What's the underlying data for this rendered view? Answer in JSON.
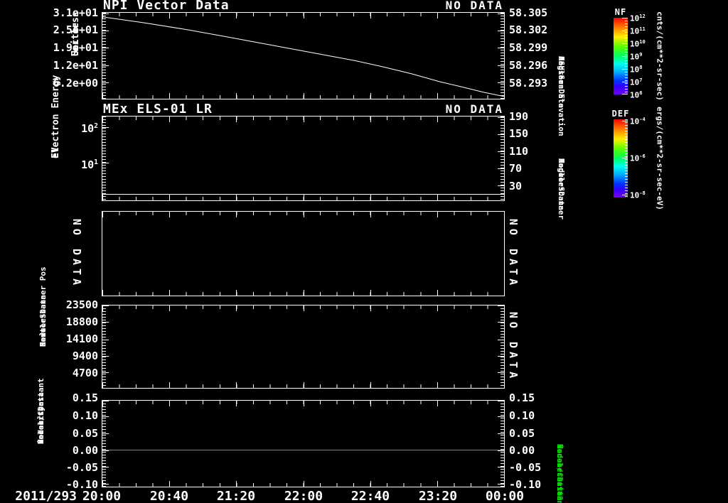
{
  "colors": {
    "background": "#000000",
    "foreground": "#ffffff",
    "green": "#00dd00"
  },
  "x_axis": {
    "date": "2011/293",
    "tick_labels": [
      "20:00",
      "20:40",
      "21:20",
      "22:00",
      "22:40",
      "23:20",
      "00:00"
    ]
  },
  "panels": [
    {
      "id": "p1",
      "title": "NPI Vector Data",
      "status": "NO DATA",
      "left_label_lines": [
        "Sector",
        "Unitless"
      ],
      "left_tick_labels": [
        "3.1e+01",
        "2.5e+01",
        "1.9e+01",
        "1.2e+01",
        "6.2e+00"
      ],
      "right_tick_labels": [
        "58.305",
        "58.302",
        "58.299",
        "58.296",
        "58.293"
      ],
      "right_label_lines": [
        "Sensor Data",
        "ESH Sun Elevation",
        "Angle",
        "degrees"
      ]
    },
    {
      "id": "p2",
      "title": "MEx ELS-01 LR",
      "status": "NO DATA",
      "left_label_lines": [
        "Electron Energy",
        "eV"
      ],
      "left_tick_labels": [
        "10^2",
        "10^1"
      ],
      "right_tick_labels": [
        "190",
        "150",
        "110",
        "70",
        "30"
      ],
      "right_label_lines": [
        "Sensor Data",
        "Model Scanner",
        "Angle",
        "degrees"
      ]
    },
    {
      "id": "p3",
      "left_status": "NO DATA",
      "right_status": "NO DATA"
    },
    {
      "id": "p4",
      "left_label_lines": [
        "Sensor Data",
        "Model Scanner Pos",
        "Raw",
        "unitless"
      ],
      "left_tick_labels": [
        "23500",
        "18800",
        "14100",
        "9400",
        "4700"
      ],
      "right_status": "NO DATA"
    },
    {
      "id": "p5",
      "left_label_lines": [
        "Sensor Data",
        "Model Constant",
        "velocity",
        "index/sec"
      ],
      "left_tick_labels": [
        "0.15",
        "0.10",
        "0.05",
        "0.00",
        "-0.05",
        "-0.10"
      ],
      "right_tick_labels": [
        "0.15",
        "0.10",
        "0.05",
        "0.00",
        "-0.05",
        "-0.10"
      ],
      "right_label_lines": [
        "Sensor Data",
        "Model Constant",
        "acceleration",
        "index/sec**2"
      ],
      "right_label_color": "#00dd00"
    }
  ],
  "colorbars": [
    {
      "title": "NF",
      "tick_labels": [
        "10^12",
        "10^11",
        "10^10",
        "10^9",
        "10^8",
        "10^7",
        "10^6"
      ],
      "unit": "cnts/(cm**2-sr-sec)"
    },
    {
      "title": "DEF",
      "tick_labels": [
        "10^-4",
        "10^-6",
        "10^-8"
      ],
      "unit": "ergs/(cm**2-sr-sec-eV)"
    }
  ],
  "chart_data": [
    {
      "panel": "p1",
      "type": "line",
      "series_name": "Sensor Data ESH Sun Elevation Angle",
      "unit": "degrees",
      "color": "#ffffff",
      "axis": "right",
      "x_start": "2011/293 20:00",
      "x_end": "2011/294 00:00",
      "x_minutes": [
        0,
        24,
        50,
        75,
        101,
        125,
        151,
        168,
        185,
        201,
        214,
        228,
        240
      ],
      "y": [
        58.3044,
        58.3034,
        58.3022,
        58.3009,
        58.2995,
        58.2982,
        58.2968,
        58.2957,
        58.2945,
        58.2932,
        58.2923,
        58.2913,
        58.2906
      ],
      "right_axis_ticks": [
        58.305,
        58.302,
        58.299,
        58.296,
        58.293
      ],
      "left_axis_ticks": [
        31,
        25,
        19,
        12,
        6.2
      ],
      "left_axis_status": "NO DATA"
    },
    {
      "panel": "p2",
      "type": "line",
      "series_name": "MEx ELS-01 LR Electron Energy",
      "unit": "eV",
      "color": "#ffffff",
      "yscale": "log",
      "x_minutes": [
        0,
        240
      ],
      "y": [
        1.3,
        1.3
      ],
      "spectrogram_status": "NO DATA",
      "right_axis_ticks": [
        190,
        150,
        110,
        70,
        30
      ]
    },
    {
      "panel": "p3",
      "type": "none",
      "status": "NO DATA"
    },
    {
      "panel": "p4",
      "type": "none",
      "status": "NO DATA",
      "left_axis_ticks": [
        23500,
        18800,
        14100,
        9400,
        4700
      ]
    },
    {
      "panel": "p5",
      "type": "line",
      "series_name": "Sensor Data Model Constant velocity / acceleration",
      "unit": "index/sec",
      "color": "#00dd00",
      "x_minutes": [
        0,
        240
      ],
      "y": [
        0.0,
        0.0
      ],
      "ylim": [
        -0.1,
        0.15
      ]
    }
  ]
}
